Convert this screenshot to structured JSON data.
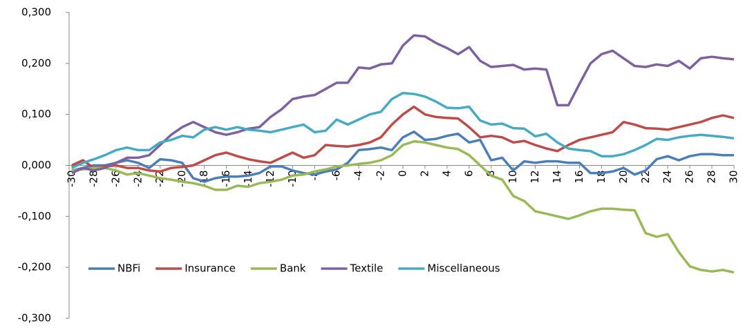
{
  "chart_data": {
    "type": "line",
    "x": [
      -30,
      -29,
      -28,
      -27,
      -26,
      -25,
      -24,
      -23,
      -22,
      -21,
      -20,
      -19,
      -18,
      -17,
      -16,
      -15,
      -14,
      -13,
      -12,
      -11,
      -10,
      -9,
      -8,
      -7,
      -6,
      -5,
      -4,
      -3,
      -2,
      -1,
      0,
      1,
      2,
      3,
      4,
      5,
      6,
      7,
      8,
      9,
      10,
      11,
      12,
      13,
      14,
      15,
      16,
      17,
      18,
      19,
      20,
      21,
      22,
      23,
      24,
      25,
      26,
      27,
      28,
      29,
      30
    ],
    "xlim": [
      -30,
      30
    ],
    "xticks": [
      -30,
      -28,
      -26,
      -24,
      -22,
      -20,
      -18,
      -16,
      -14,
      -12,
      -10,
      -8,
      -6,
      -4,
      -2,
      0,
      2,
      4,
      6,
      8,
      10,
      12,
      14,
      16,
      18,
      20,
      22,
      24,
      26,
      28,
      30
    ],
    "ylim": [
      -0.3,
      0.3
    ],
    "yticks": [
      {
        "value": 0.3,
        "label": "0,300"
      },
      {
        "value": 0.2,
        "label": "0,200"
      },
      {
        "value": 0.1,
        "label": "0,100"
      },
      {
        "value": 0,
        "label": "0,000"
      },
      {
        "value": -0.1,
        "label": "-0,100"
      },
      {
        "value": -0.2,
        "label": "-0,200"
      },
      {
        "value": -0.3,
        "label": "-0,300"
      }
    ],
    "grid": false,
    "legend_position": "bottom-left",
    "series": [
      {
        "name": "NBFi",
        "color": "#4a7ebb",
        "values": [
          -0.01,
          -0.005,
          0.0,
          0.0,
          0.005,
          0.01,
          0.005,
          -0.005,
          0.012,
          0.01,
          0.005,
          -0.025,
          -0.032,
          -0.025,
          -0.022,
          -0.022,
          -0.02,
          -0.015,
          -0.002,
          -0.002,
          -0.01,
          -0.015,
          -0.018,
          -0.012,
          -0.008,
          0.005,
          0.03,
          0.032,
          0.035,
          0.03,
          0.055,
          0.066,
          0.05,
          0.052,
          0.058,
          0.062,
          0.045,
          0.05,
          0.01,
          0.015,
          -0.01,
          0.008,
          0.005,
          0.008,
          0.008,
          0.005,
          0.005,
          -0.015,
          -0.015,
          -0.012,
          -0.005,
          -0.018,
          -0.01,
          0.012,
          0.018,
          0.01,
          0.018,
          0.022,
          0.022,
          0.02,
          0.02
        ]
      },
      {
        "name": "Insurance",
        "color": "#be4b48",
        "values": [
          0.0,
          0.01,
          -0.005,
          -0.002,
          0.0,
          -0.005,
          -0.005,
          -0.01,
          -0.012,
          -0.005,
          -0.003,
          0.0,
          0.01,
          0.02,
          0.025,
          0.018,
          0.012,
          0.008,
          0.005,
          0.015,
          0.025,
          0.015,
          0.02,
          0.04,
          0.038,
          0.037,
          0.04,
          0.045,
          0.055,
          0.08,
          0.1,
          0.115,
          0.1,
          0.095,
          0.093,
          0.092,
          0.075,
          0.055,
          0.058,
          0.055,
          0.045,
          0.048,
          0.04,
          0.033,
          0.028,
          0.04,
          0.05,
          0.055,
          0.06,
          0.065,
          0.085,
          0.08,
          0.073,
          0.072,
          0.07,
          0.075,
          0.08,
          0.085,
          0.093,
          0.098,
          0.093
        ]
      },
      {
        "name": "Bank",
        "color": "#98b954",
        "values": [
          -0.01,
          -0.008,
          -0.005,
          -0.005,
          -0.01,
          -0.018,
          -0.015,
          -0.02,
          -0.025,
          -0.028,
          -0.032,
          -0.035,
          -0.04,
          -0.048,
          -0.048,
          -0.04,
          -0.042,
          -0.035,
          -0.032,
          -0.028,
          -0.02,
          -0.018,
          -0.012,
          -0.008,
          -0.002,
          0.0,
          0.003,
          0.005,
          0.01,
          0.02,
          0.04,
          0.047,
          0.045,
          0.04,
          0.035,
          0.032,
          0.02,
          0.0,
          -0.02,
          -0.028,
          -0.06,
          -0.07,
          -0.09,
          -0.095,
          -0.1,
          -0.105,
          -0.098,
          -0.09,
          -0.085,
          -0.085,
          -0.087,
          -0.088,
          -0.133,
          -0.14,
          -0.135,
          -0.17,
          -0.198,
          -0.205,
          -0.208,
          -0.205,
          -0.21
        ]
      },
      {
        "name": "Textile",
        "color": "#7d60a0",
        "values": [
          -0.015,
          -0.005,
          -0.01,
          -0.005,
          0.005,
          0.015,
          0.015,
          0.02,
          0.04,
          0.06,
          0.075,
          0.085,
          0.075,
          0.065,
          0.06,
          0.065,
          0.072,
          0.075,
          0.095,
          0.11,
          0.13,
          0.135,
          0.138,
          0.15,
          0.162,
          0.162,
          0.192,
          0.19,
          0.198,
          0.2,
          0.235,
          0.255,
          0.253,
          0.24,
          0.23,
          0.218,
          0.232,
          0.205,
          0.193,
          0.195,
          0.197,
          0.188,
          0.19,
          0.188,
          0.118,
          0.118,
          0.16,
          0.2,
          0.218,
          0.225,
          0.21,
          0.195,
          0.193,
          0.198,
          0.195,
          0.205,
          0.19,
          0.21,
          0.213,
          0.21,
          0.208
        ]
      },
      {
        "name": "Miscellaneous",
        "color": "#46aac5",
        "values": [
          -0.005,
          0.005,
          0.012,
          0.02,
          0.03,
          0.035,
          0.03,
          0.03,
          0.045,
          0.05,
          0.058,
          0.055,
          0.07,
          0.075,
          0.07,
          0.075,
          0.07,
          0.068,
          0.065,
          0.07,
          0.075,
          0.08,
          0.065,
          0.068,
          0.09,
          0.08,
          0.09,
          0.1,
          0.105,
          0.13,
          0.142,
          0.14,
          0.135,
          0.125,
          0.113,
          0.112,
          0.115,
          0.088,
          0.08,
          0.082,
          0.073,
          0.072,
          0.057,
          0.062,
          0.045,
          0.033,
          0.03,
          0.028,
          0.018,
          0.018,
          0.022,
          0.03,
          0.04,
          0.052,
          0.05,
          0.055,
          0.058,
          0.06,
          0.058,
          0.056,
          0.053
        ]
      }
    ]
  }
}
